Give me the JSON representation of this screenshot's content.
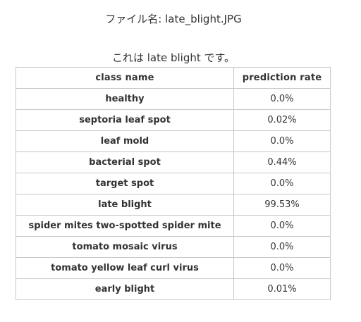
{
  "header": {
    "file_label": "ファイル名: late_blight.JPG",
    "result_text": "これは late blight です。"
  },
  "table": {
    "columns": [
      "class name",
      "prediction rate"
    ],
    "rows": [
      {
        "class_name": "healthy",
        "rate": "0.0%"
      },
      {
        "class_name": "septoria leaf spot",
        "rate": "0.02%"
      },
      {
        "class_name": "leaf mold",
        "rate": "0.0%"
      },
      {
        "class_name": "bacterial spot",
        "rate": "0.44%"
      },
      {
        "class_name": "target spot",
        "rate": "0.0%"
      },
      {
        "class_name": "late blight",
        "rate": "99.53%"
      },
      {
        "class_name": "spider mites two-spotted spider mite",
        "rate": "0.0%"
      },
      {
        "class_name": "tomato mosaic virus",
        "rate": "0.0%"
      },
      {
        "class_name": "tomato yellow leaf curl virus",
        "rate": "0.0%"
      },
      {
        "class_name": "early blight",
        "rate": "0.01%"
      }
    ]
  }
}
